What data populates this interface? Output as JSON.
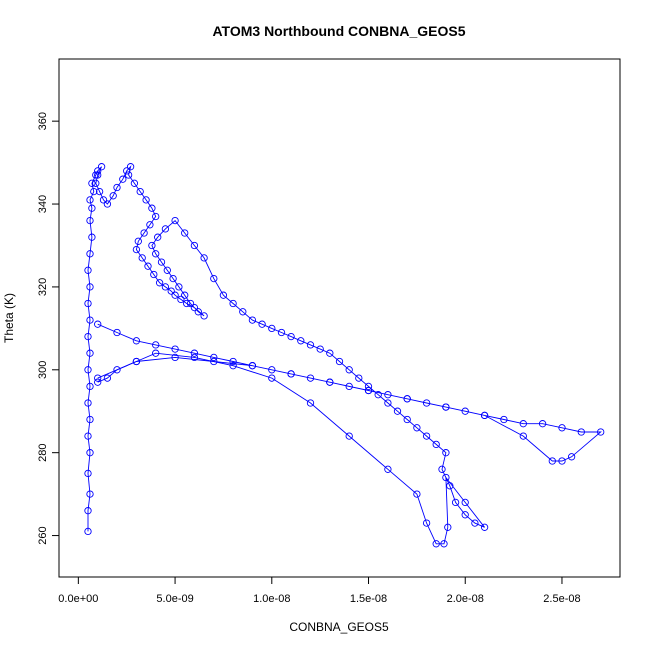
{
  "chart_data": {
    "type": "scatter",
    "title": "ATOM3 Northbound CONBNA_GEOS5",
    "xlabel": "CONBNA_GEOS5",
    "ylabel": "Theta (K)",
    "xlim": [
      -1e-09,
      2.8e-08
    ],
    "ylim": [
      250,
      375
    ],
    "x_ticks": [
      0,
      5e-09,
      1e-08,
      1.5e-08,
      2e-08,
      2.5e-08
    ],
    "x_tick_labels": [
      "0.0e+00",
      "5.0e-09",
      "1.0e-08",
      "1.5e-08",
      "2.0e-08",
      "2.5e-08"
    ],
    "y_ticks": [
      260,
      280,
      300,
      320,
      340,
      360
    ],
    "y_tick_labels": [
      "260",
      "280",
      "300",
      "320",
      "340",
      "360"
    ],
    "marker": "open-circle",
    "connected": true,
    "grid": false,
    "legend": "none",
    "colors": {
      "series": "#0000ff",
      "axes": "#000000"
    },
    "series": [
      {
        "x": [
          5e-10,
          5e-10,
          6e-10,
          5e-10,
          6e-10,
          5e-10,
          6e-10,
          5e-10,
          6e-10,
          5e-10,
          6e-10,
          5e-10,
          6e-10,
          5e-10,
          6e-10,
          5e-10,
          6e-10,
          7e-10,
          6e-10,
          7e-10,
          6e-10,
          8e-10,
          7e-10,
          9e-10,
          1e-09,
          1.2e-09,
          1e-09,
          9e-10,
          1.1e-09,
          1.3e-09,
          1.5e-09,
          1.8e-09,
          2e-09,
          2.3e-09,
          2.5e-09,
          2.7e-09,
          2.6e-09,
          2.9e-09,
          3.2e-09,
          3.5e-09,
          3.8e-09,
          4e-09,
          3.7e-09,
          3.4e-09,
          3.1e-09,
          3e-09,
          3.3e-09,
          3.6e-09,
          3.9e-09,
          4.2e-09,
          4.5e-09,
          4.8e-09,
          5e-09,
          5.3e-09,
          5.6e-09,
          6e-09,
          6.5e-09,
          6.2e-09,
          5.8e-09,
          5.5e-09,
          5.2e-09,
          4.9e-09,
          4.6e-09,
          4.3e-09,
          4e-09,
          3.8e-09,
          4.1e-09,
          4.5e-09,
          5e-09,
          5.5e-09,
          6e-09,
          6.5e-09,
          7e-09,
          7.5e-09,
          8e-09,
          8.5e-09,
          9e-09,
          9.5e-09,
          1e-08,
          1.05e-08,
          1.1e-08,
          1.15e-08,
          1.2e-08,
          1.25e-08,
          1.3e-08,
          1.35e-08,
          1.4e-08,
          1.45e-08,
          1.5e-08,
          1.55e-08,
          1.6e-08,
          1.65e-08,
          1.7e-08,
          1.75e-08,
          1.8e-08,
          1.85e-08,
          1.9e-08,
          1.88e-08,
          1.92e-08,
          1.95e-08,
          2e-08,
          2.05e-08,
          2.1e-08,
          2e-08,
          1.9e-08,
          1.91e-08,
          1.89e-08,
          1.85e-08,
          1.8e-08,
          1.75e-08,
          1.6e-08,
          1.4e-08,
          1.2e-08,
          1e-08,
          8e-09,
          6e-09,
          4e-09,
          3e-09,
          2e-09,
          1.5e-09,
          1e-09
        ],
        "y": [
          261,
          266,
          270,
          275,
          280,
          284,
          288,
          292,
          296,
          300,
          304,
          308,
          312,
          316,
          320,
          324,
          328,
          332,
          336,
          339,
          341,
          343,
          345,
          347,
          348,
          349,
          347,
          345,
          343,
          341,
          340,
          342,
          344,
          346,
          348,
          349,
          347,
          345,
          343,
          341,
          339,
          337,
          335,
          333,
          331,
          329,
          327,
          325,
          323,
          321,
          320,
          319,
          318,
          317,
          316,
          315,
          313,
          314,
          316,
          318,
          320,
          322,
          324,
          326,
          328,
          330,
          332,
          334,
          336,
          333,
          330,
          327,
          322,
          318,
          316,
          314,
          312,
          311,
          310,
          309,
          308,
          307,
          306,
          305,
          304,
          302,
          300,
          298,
          296,
          294,
          292,
          290,
          288,
          286,
          284,
          282,
          280,
          276,
          272,
          268,
          265,
          263,
          262,
          268,
          274,
          262,
          258,
          258,
          263,
          270,
          276,
          284,
          292,
          298,
          301,
          303,
          304,
          302,
          300,
          298,
          297
        ]
      },
      {
        "x": [
          1e-09,
          2e-09,
          3e-09,
          4e-09,
          5e-09,
          6e-09,
          7e-09,
          8e-09,
          9e-09,
          1e-08,
          1.1e-08,
          1.2e-08,
          1.3e-08,
          1.4e-08,
          1.5e-08,
          1.6e-08,
          1.7e-08,
          1.8e-08,
          1.9e-08,
          2e-08,
          2.1e-08,
          2.2e-08,
          2.3e-08,
          2.4e-08,
          2.5e-08,
          2.6e-08,
          2.7e-08,
          2.55e-08,
          2.5e-08,
          2.45e-08,
          2.3e-08,
          2.1e-08,
          1.9e-08,
          1.7e-08,
          1.5e-08,
          1.3e-08,
          1.1e-08,
          9e-09,
          7e-09,
          5e-09,
          3e-09,
          1e-09
        ],
        "y": [
          311,
          309,
          307,
          306,
          305,
          304,
          303,
          302,
          301,
          300,
          299,
          298,
          297,
          296,
          295,
          294,
          293,
          292,
          291,
          290,
          289,
          288,
          287,
          287,
          286,
          285,
          285,
          279,
          278,
          278,
          284,
          289,
          291,
          293,
          295,
          297,
          299,
          301,
          302,
          303,
          302,
          298
        ]
      }
    ]
  }
}
